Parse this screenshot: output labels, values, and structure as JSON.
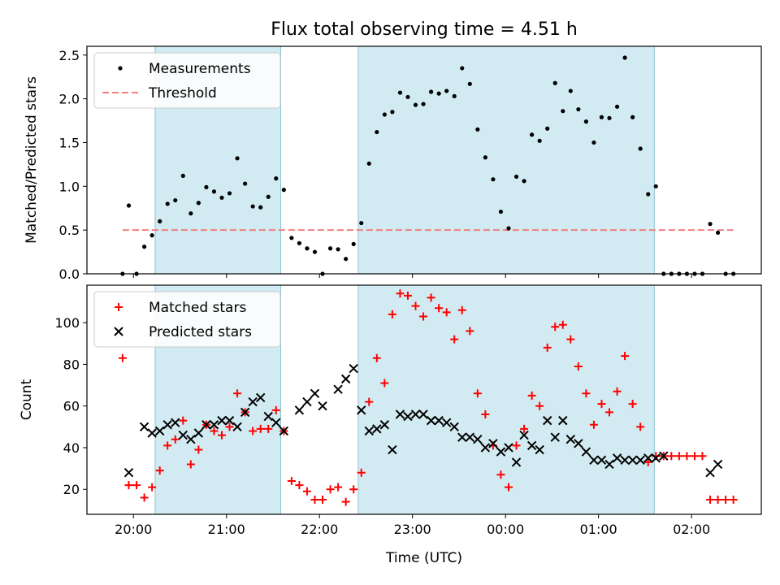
{
  "figure": {
    "title": "Flux total observing time = 4.51 h"
  },
  "chart_data": [
    {
      "type": "scatter",
      "panel": "top",
      "ylabel": "Matched/Predicted stars",
      "ylim": [
        0,
        2.6
      ],
      "yticks": [
        0.0,
        0.5,
        1.0,
        1.5,
        2.0,
        2.5
      ],
      "ytick_labels": [
        "0.0",
        "0.5",
        "1.0",
        "1.5",
        "2.0",
        "2.5"
      ],
      "legend": {
        "placement": "upper-left",
        "entries": [
          "Measurements",
          "Threshold"
        ]
      },
      "threshold": {
        "name": "Threshold",
        "value": 0.5,
        "x_start": "19:53",
        "x_end": "02:27",
        "color": "#f08080"
      },
      "series": [
        {
          "name": "Measurements",
          "color": "#000000",
          "x": [
            "19:53",
            "19:57",
            "20:02",
            "20:07",
            "20:12",
            "20:17",
            "20:22",
            "20:27",
            "20:32",
            "20:37",
            "20:42",
            "20:47",
            "20:52",
            "20:57",
            "21:02",
            "21:07",
            "21:12",
            "21:17",
            "21:22",
            "21:27",
            "21:32",
            "21:37",
            "21:42",
            "21:47",
            "21:52",
            "21:57",
            "22:02",
            "22:07",
            "22:12",
            "22:17",
            "22:22",
            "22:27",
            "22:32",
            "22:37",
            "22:42",
            "22:47",
            "22:52",
            "22:57",
            "23:02",
            "23:07",
            "23:12",
            "23:17",
            "23:22",
            "23:27",
            "23:32",
            "23:37",
            "23:42",
            "23:47",
            "23:52",
            "23:57",
            "00:02",
            "00:07",
            "00:12",
            "00:17",
            "00:22",
            "00:27",
            "00:32",
            "00:37",
            "00:42",
            "00:47",
            "00:52",
            "00:57",
            "01:02",
            "01:07",
            "01:12",
            "01:17",
            "01:22",
            "01:27",
            "01:32",
            "01:37",
            "01:42",
            "01:47",
            "01:52",
            "01:57",
            "02:02",
            "02:07",
            "02:12",
            "02:17",
            "02:22",
            "02:27"
          ],
          "y": [
            0.0,
            0.78,
            0.0,
            0.31,
            0.44,
            0.6,
            0.8,
            0.84,
            1.12,
            0.69,
            0.81,
            0.99,
            0.94,
            0.87,
            0.92,
            1.32,
            1.03,
            0.77,
            0.76,
            0.88,
            1.09,
            0.96,
            0.41,
            0.35,
            0.29,
            0.25,
            0.0,
            0.29,
            0.28,
            0.17,
            0.34,
            0.58,
            1.26,
            1.62,
            1.82,
            1.85,
            2.07,
            2.02,
            1.93,
            1.94,
            2.08,
            2.06,
            2.09,
            2.03,
            2.35,
            2.17,
            1.65,
            1.33,
            1.08,
            0.71,
            0.52,
            1.11,
            1.06,
            1.59,
            1.52,
            1.66,
            2.18,
            1.86,
            2.09,
            1.88,
            1.74,
            1.5,
            1.79,
            1.78,
            1.91,
            2.47,
            1.79,
            1.43,
            0.91,
            1.0,
            0.0,
            0.0,
            0.0,
            0.0,
            0.0,
            0.0,
            0.57,
            0.47,
            0.0,
            0.0
          ]
        }
      ]
    },
    {
      "type": "scatter",
      "panel": "bottom",
      "xlabel": "Time (UTC)",
      "ylabel": "Count",
      "ylim": [
        8,
        118
      ],
      "yticks": [
        20,
        40,
        60,
        80,
        100
      ],
      "ytick_labels": [
        "20",
        "40",
        "60",
        "80",
        "100"
      ],
      "xticks": [
        "20:00",
        "21:00",
        "22:00",
        "23:00",
        "00:00",
        "01:00",
        "02:00"
      ],
      "legend": {
        "placement": "upper-left",
        "entries": [
          "Matched stars",
          "Predicted stars"
        ]
      },
      "series": [
        {
          "name": "Matched stars",
          "color": "#ff0000",
          "x": [
            "19:53",
            "19:57",
            "20:02",
            "20:07",
            "20:12",
            "20:17",
            "20:22",
            "20:27",
            "20:32",
            "20:37",
            "20:42",
            "20:47",
            "20:52",
            "20:57",
            "21:02",
            "21:07",
            "21:12",
            "21:17",
            "21:22",
            "21:27",
            "21:32",
            "21:37",
            "21:42",
            "21:47",
            "21:52",
            "21:57",
            "22:02",
            "22:07",
            "22:12",
            "22:17",
            "22:22",
            "22:27",
            "22:32",
            "22:37",
            "22:42",
            "22:47",
            "22:52",
            "22:57",
            "23:02",
            "23:07",
            "23:12",
            "23:17",
            "23:22",
            "23:27",
            "23:32",
            "23:37",
            "23:42",
            "23:47",
            "23:52",
            "23:57",
            "00:02",
            "00:07",
            "00:12",
            "00:17",
            "00:22",
            "00:27",
            "00:32",
            "00:37",
            "00:42",
            "00:47",
            "00:52",
            "00:57",
            "01:02",
            "01:07",
            "01:12",
            "01:17",
            "01:22",
            "01:27",
            "01:32",
            "01:37",
            "01:42",
            "01:47",
            "01:52",
            "01:57",
            "02:02",
            "02:07",
            "02:12",
            "02:17",
            "02:22",
            "02:27"
          ],
          "y": [
            83,
            22,
            22,
            16,
            21,
            29,
            41,
            44,
            53,
            32,
            39,
            51,
            48,
            46,
            50,
            66,
            57,
            48,
            49,
            49,
            58,
            48,
            24,
            22,
            19,
            15,
            15,
            20,
            21,
            14,
            20,
            28,
            62,
            83,
            71,
            104,
            114,
            113,
            108,
            103,
            112,
            107,
            105,
            92,
            106,
            96,
            66,
            56,
            41,
            27,
            21,
            41,
            49,
            65,
            60,
            88,
            98,
            99,
            92,
            79,
            66,
            51,
            61,
            57,
            67,
            84,
            61,
            50,
            33,
            36,
            36,
            36,
            36,
            36,
            36,
            36,
            15,
            15,
            15,
            15
          ]
        },
        {
          "name": "Predicted stars",
          "color": "#000000",
          "x": [
            "19:57",
            "20:07",
            "20:12",
            "20:17",
            "20:22",
            "20:27",
            "20:32",
            "20:37",
            "20:42",
            "20:47",
            "20:52",
            "20:57",
            "21:02",
            "21:07",
            "21:12",
            "21:17",
            "21:22",
            "21:27",
            "21:32",
            "21:37",
            "21:47",
            "21:52",
            "21:57",
            "22:02",
            "22:12",
            "22:17",
            "22:22",
            "22:27",
            "22:32",
            "22:37",
            "22:42",
            "22:47",
            "22:52",
            "22:57",
            "23:02",
            "23:07",
            "23:12",
            "23:17",
            "23:22",
            "23:27",
            "23:32",
            "23:37",
            "23:42",
            "23:47",
            "23:52",
            "23:57",
            "00:02",
            "00:07",
            "00:12",
            "00:17",
            "00:22",
            "00:27",
            "00:32",
            "00:37",
            "00:42",
            "00:47",
            "00:52",
            "00:57",
            "01:02",
            "01:07",
            "01:12",
            "01:17",
            "01:22",
            "01:27",
            "01:32",
            "01:37",
            "01:42",
            "02:12",
            "02:17"
          ],
          "y": [
            28,
            50,
            47,
            48,
            51,
            52,
            46,
            44,
            47,
            51,
            51,
            53,
            53,
            50,
            57,
            62,
            64,
            55,
            52,
            48,
            58,
            62,
            66,
            60,
            68,
            73,
            78,
            58,
            48,
            49,
            51,
            39,
            56,
            55,
            56,
            56,
            53,
            53,
            52,
            50,
            45,
            45,
            44,
            40,
            42,
            38,
            40,
            33,
            46,
            41,
            39,
            53,
            45,
            53,
            44,
            42,
            38,
            34,
            34,
            32,
            35,
            34,
            34,
            34,
            35,
            35,
            36,
            28,
            32
          ]
        }
      ]
    }
  ],
  "shaded_intervals": [
    {
      "start": "20:14",
      "end": "21:35",
      "color": "#add8e6"
    },
    {
      "start": "22:25",
      "end": "01:36",
      "color": "#add8e6"
    }
  ]
}
